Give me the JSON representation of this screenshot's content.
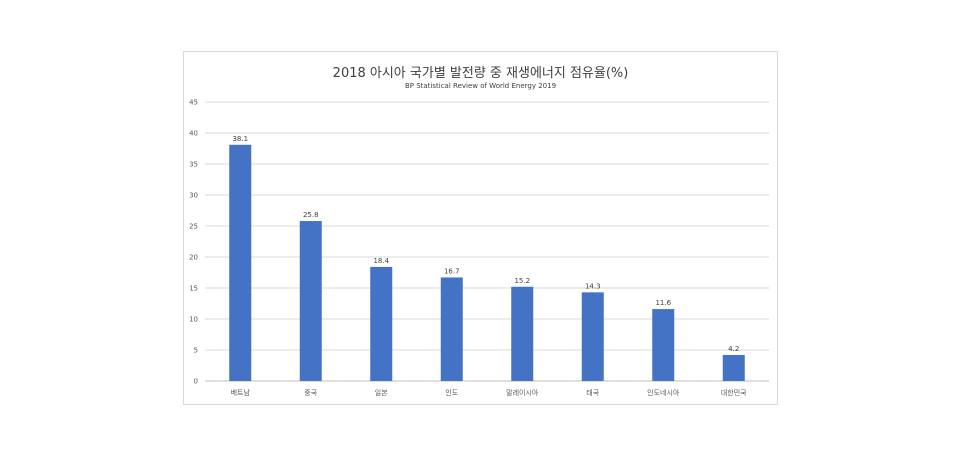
{
  "chart_data": {
    "type": "bar",
    "title": "2018 아시아 국가별 발전량 중 재생에너지 점유율(%)",
    "subtitle": "BP Statistical Review of World Energy 2019",
    "categories": [
      "베트남",
      "중국",
      "일본",
      "인도",
      "말레이시아",
      "태국",
      "인도네시아",
      "대한민국"
    ],
    "values": [
      38.1,
      25.8,
      18.4,
      16.7,
      15.2,
      14.3,
      11.6,
      4.2
    ],
    "data_labels": [
      "38.1",
      "25.8",
      "18.4",
      "16.7",
      "15.2",
      "14.3",
      "11.6",
      "4.2"
    ],
    "xlabel": "",
    "ylabel": "",
    "ylim": [
      0,
      45
    ],
    "yticks": [
      "0",
      "5",
      "10",
      "15",
      "20",
      "25",
      "30",
      "35",
      "40",
      "45"
    ],
    "grid": true,
    "legend": "none",
    "bar_color": "#4472c4",
    "grid_color": "#d9d9d9"
  }
}
